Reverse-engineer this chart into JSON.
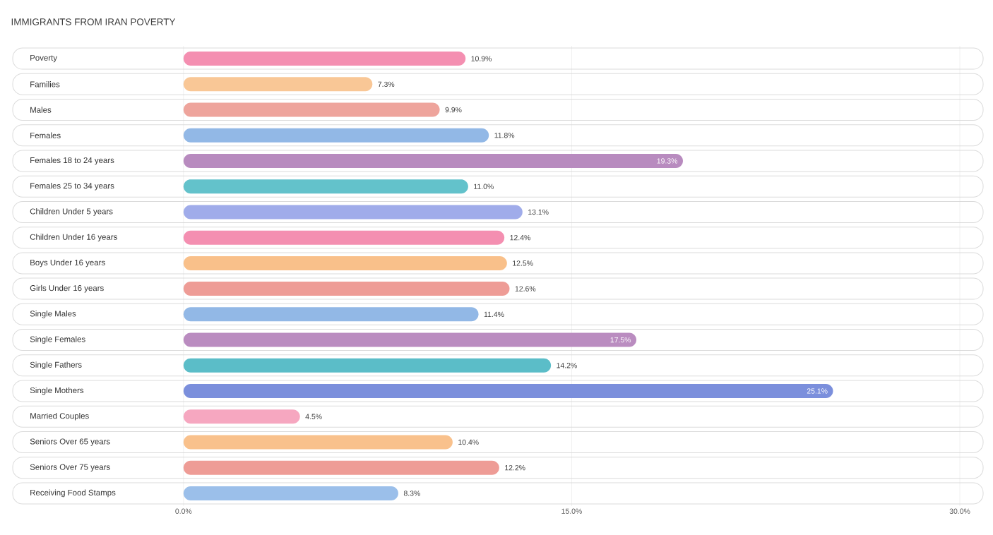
{
  "chart_data": {
    "type": "bar",
    "orientation": "horizontal",
    "title": "IMMIGRANTS FROM IRAN POVERTY",
    "categories": [
      "Poverty",
      "Families",
      "Males",
      "Females",
      "Females 18 to 24 years",
      "Females 25 to 34 years",
      "Children Under 5 years",
      "Children Under 16 years",
      "Boys Under 16 years",
      "Girls Under 16 years",
      "Single Males",
      "Single Females",
      "Single Fathers",
      "Single Mothers",
      "Married Couples",
      "Seniors Over 65 years",
      "Seniors Over 75 years",
      "Receiving Food Stamps"
    ],
    "values": [
      10.9,
      7.3,
      9.9,
      11.8,
      19.3,
      11.0,
      13.1,
      12.4,
      12.5,
      12.6,
      11.4,
      17.5,
      14.2,
      25.1,
      4.5,
      10.4,
      12.2,
      8.3
    ],
    "value_labels": [
      "10.9%",
      "7.3%",
      "9.9%",
      "11.8%",
      "19.3%",
      "11.0%",
      "13.1%",
      "12.4%",
      "12.5%",
      "12.6%",
      "11.4%",
      "17.5%",
      "14.2%",
      "25.1%",
      "4.5%",
      "10.4%",
      "12.2%",
      "8.3%"
    ],
    "colors": [
      "#f48fb1",
      "#f9c796",
      "#eea49c",
      "#92b8e6",
      "#b88bbf",
      "#63c2cb",
      "#a0acea",
      "#f48fb1",
      "#f9c08a",
      "#ee9c96",
      "#92b8e6",
      "#ba8cc0",
      "#5bbdc8",
      "#7b8fdc",
      "#f6a7c0",
      "#f9c18c",
      "#ee9c96",
      "#9bbfea"
    ],
    "xlim": [
      -6.6,
      30.9
    ],
    "xticks": [
      {
        "value": 0,
        "label": "0.0%"
      },
      {
        "value": 15,
        "label": "15.0%"
      },
      {
        "value": 30,
        "label": "30.0%"
      }
    ],
    "grid": "x"
  }
}
